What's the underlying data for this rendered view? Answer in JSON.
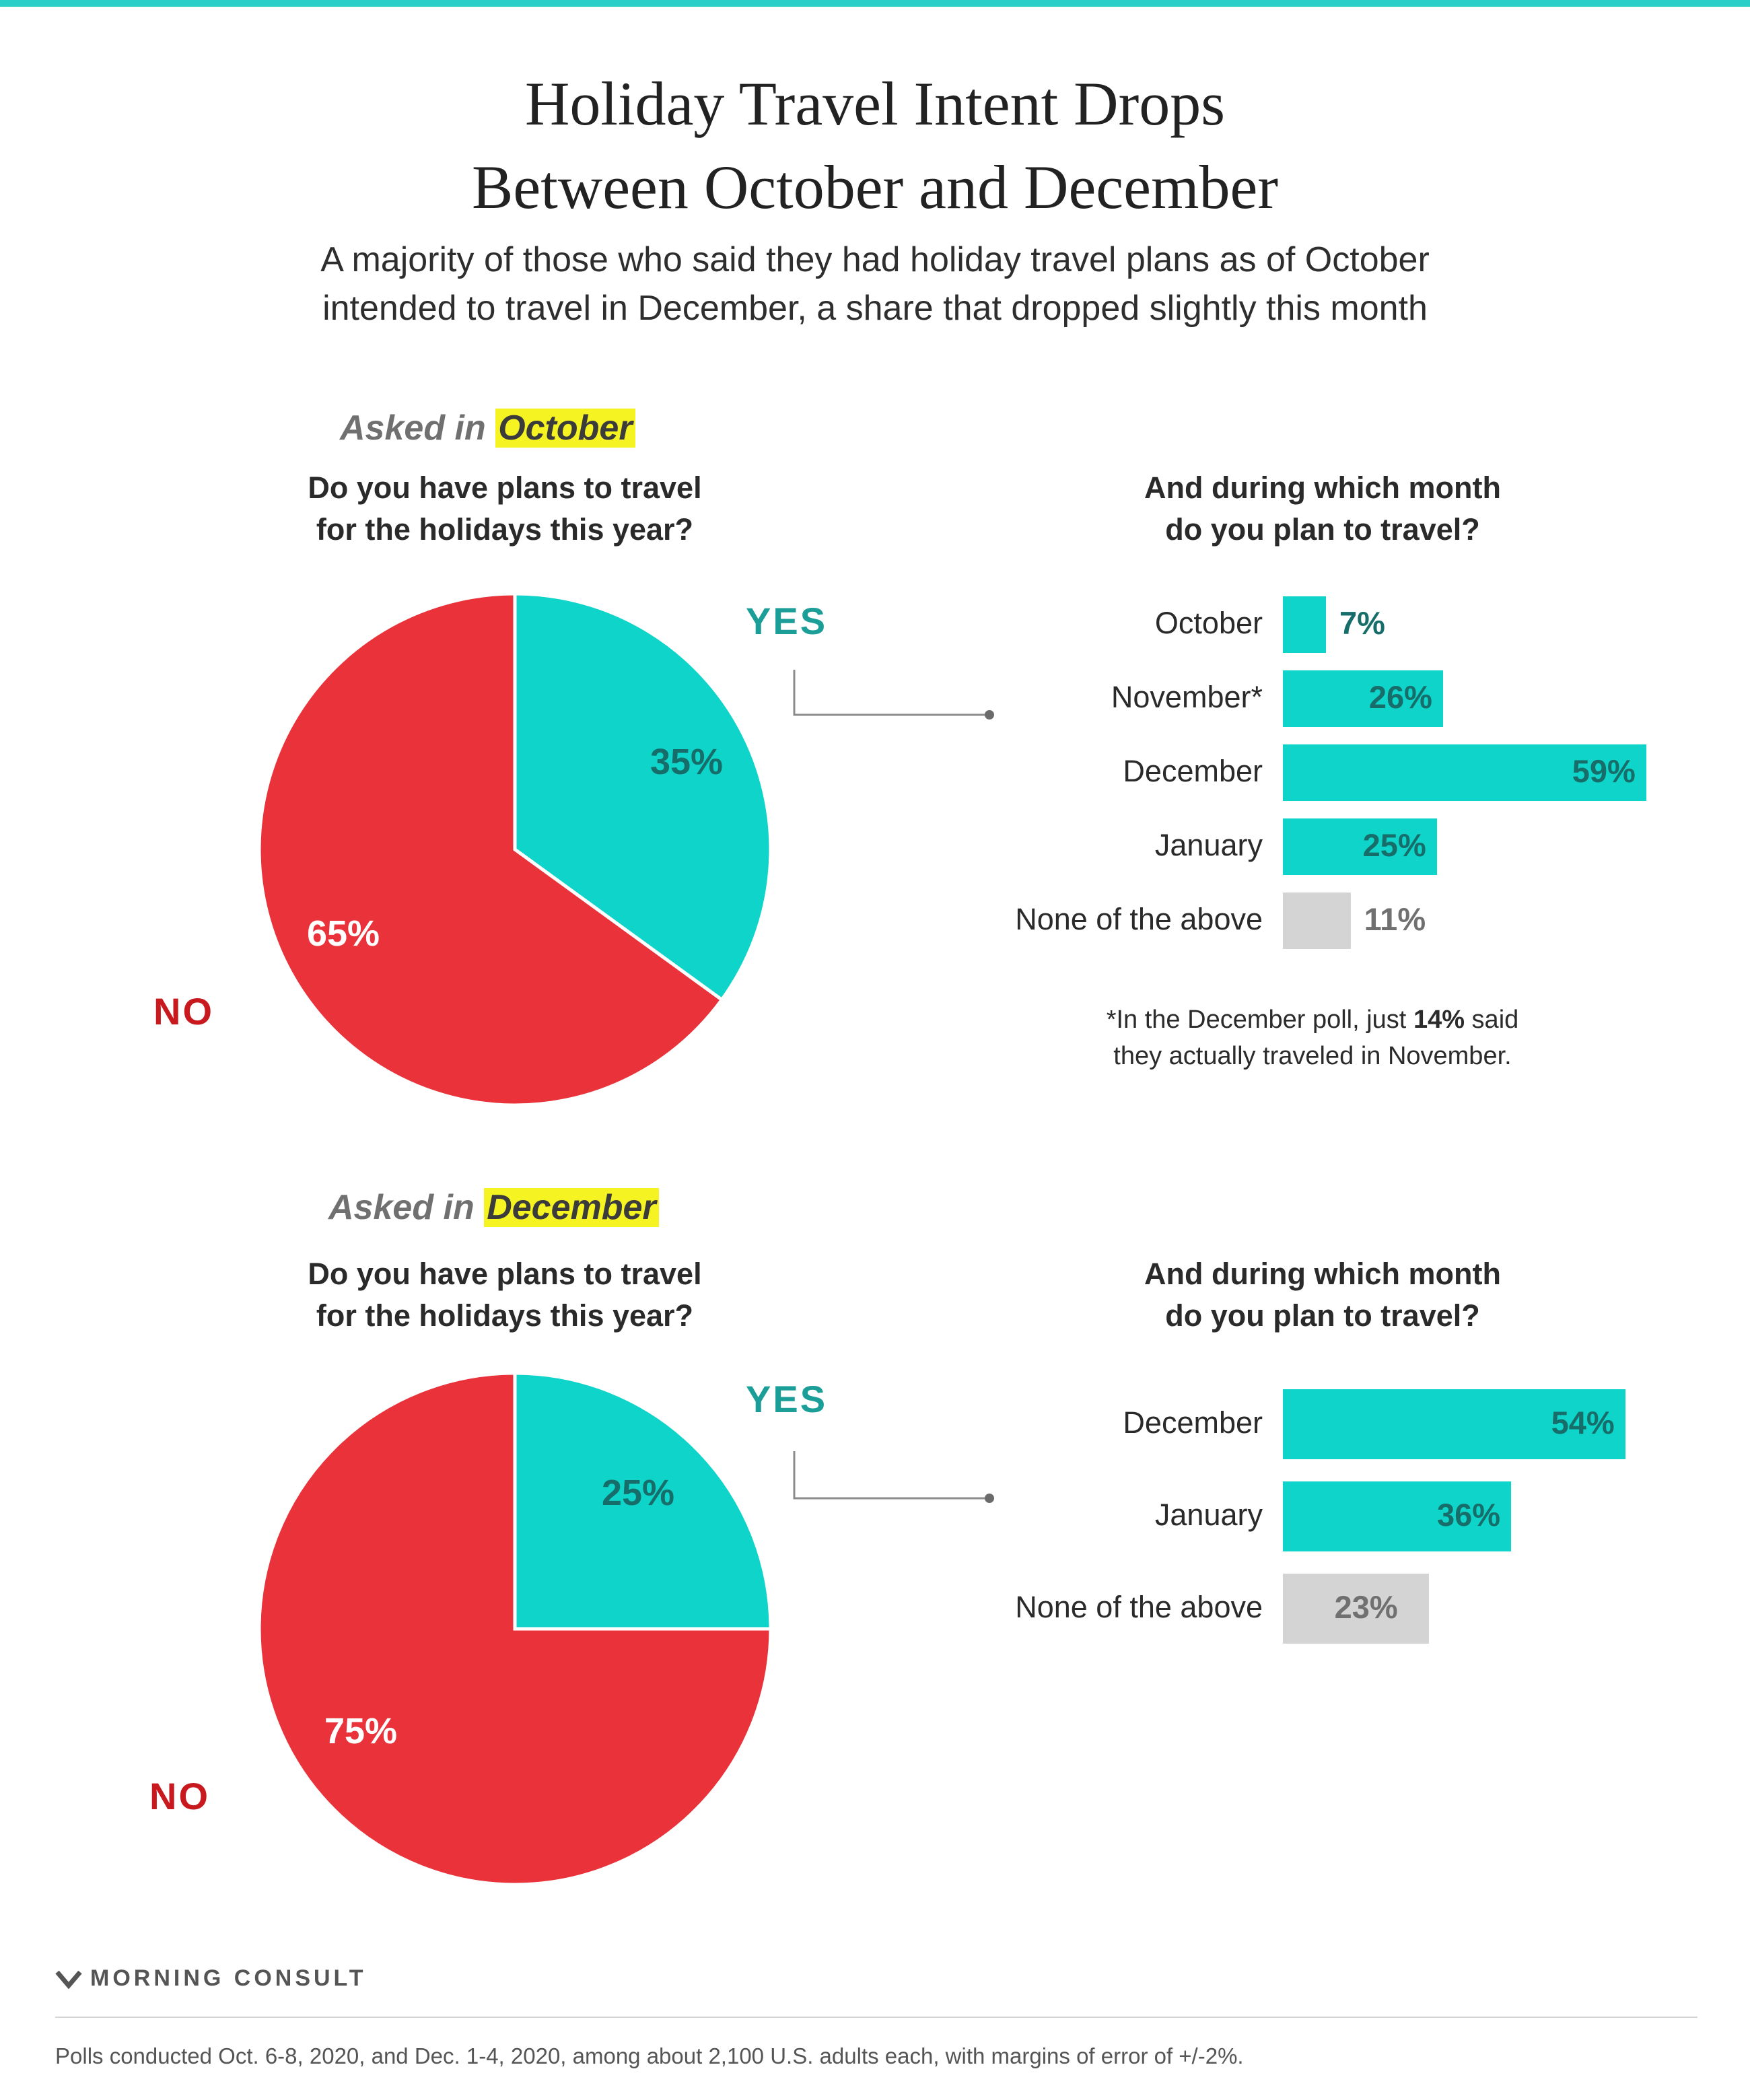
{
  "title_line1": "Holiday Travel Intent Drops",
  "title_line2": "Between October and December",
  "subtitle_line1": "A majority of those who said they had holiday travel plans as of October",
  "subtitle_line2": "intended to travel in December, a share that dropped slightly this month",
  "colors": {
    "yes": "#0fd4c9",
    "no": "#e9323a",
    "none_bar": "#d4d4d4",
    "highlight": "#f6f323",
    "yes_text": "#1a9e97",
    "no_text": "#c8191f"
  },
  "chart_data": [
    {
      "type": "pie",
      "panel": "october",
      "asked_prefix": "Asked in",
      "asked_month": "October",
      "question_line1": "Do you have plans to travel",
      "question_line2": "for the holidays this year?",
      "slices": [
        {
          "label": "YES",
          "value": 35,
          "value_label": "35%"
        },
        {
          "label": "NO",
          "value": 65,
          "value_label": "65%"
        }
      ]
    },
    {
      "type": "bar",
      "panel": "october",
      "question_line1": "And during which month",
      "question_line2": "do you plan to travel?",
      "categories": [
        "October",
        "November*",
        "December",
        "January",
        "None of the above"
      ],
      "values": [
        7,
        26,
        59,
        25,
        11
      ],
      "value_labels": [
        "7%",
        "26%",
        "59%",
        "25%",
        "11%"
      ],
      "footnote_prefix": "*In the December poll, just ",
      "footnote_bold": "14%",
      "footnote_suffix": " said",
      "footnote_line2": "they actually traveled in November."
    },
    {
      "type": "pie",
      "panel": "december",
      "asked_prefix": "Asked in",
      "asked_month": "December",
      "question_line1": "Do you have plans to travel",
      "question_line2": "for the holidays this year?",
      "slices": [
        {
          "label": "YES",
          "value": 25,
          "value_label": "25%"
        },
        {
          "label": "NO",
          "value": 75,
          "value_label": "75%"
        }
      ]
    },
    {
      "type": "bar",
      "panel": "december",
      "question_line1": "And during which month",
      "question_line2": "do you plan to travel?",
      "categories": [
        "December",
        "January",
        "None of the above"
      ],
      "values": [
        54,
        36,
        23
      ],
      "value_labels": [
        "54%",
        "36%",
        "23%"
      ]
    }
  ],
  "brand": "MORNING CONSULT",
  "source": "Polls conducted Oct. 6-8, 2020, and Dec. 1-4, 2020, among about 2,100 U.S. adults each, with margins of error of +/-2%."
}
